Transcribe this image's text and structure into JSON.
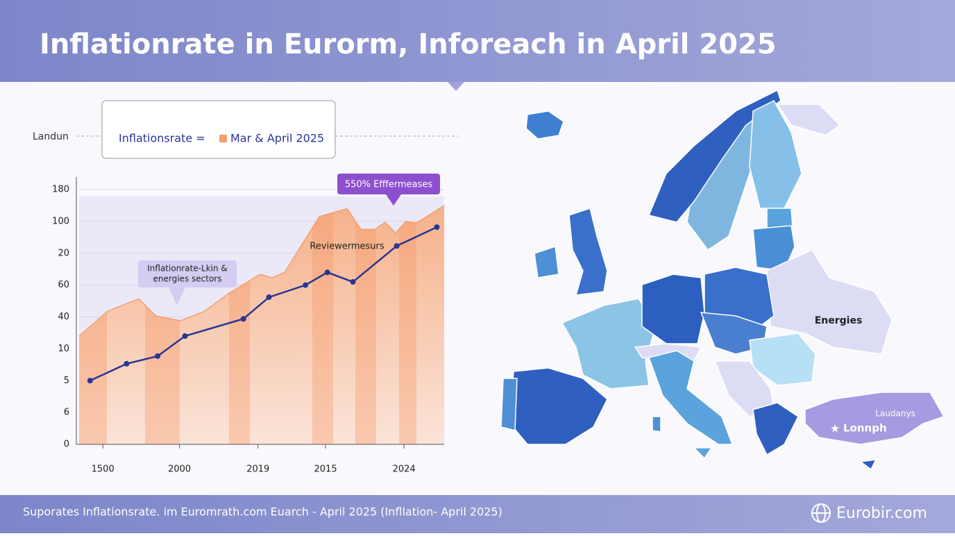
{
  "title": "Inflationrate in Eurorm, Inforeach in April 2025",
  "chart_data": {
    "type": "line",
    "side_label": "Landun",
    "series": [
      {
        "name": "Inflationsrate =",
        "color": "#283593",
        "x": [
          3,
          13,
          21.5,
          29,
          45,
          52,
          62,
          68,
          75,
          87,
          98
        ],
        "values": [
          2.0,
          2.53,
          2.77,
          3.4,
          3.94,
          4.62,
          5.0,
          5.4,
          5.1,
          6.23,
          6.82
        ]
      },
      {
        "name": "Mar & April 2025",
        "color": "#f4a06b",
        "x": [
          0,
          7.8,
          16.3,
          21.1,
          27.8,
          34.4,
          41.1,
          49.6,
          52.9,
          56.3,
          65.8,
          73.4,
          77.2,
          81.0,
          83.8,
          86.7,
          89.5,
          92.4,
          100
        ],
        "values": [
          3.4,
          4.18,
          4.57,
          4.03,
          3.88,
          4.18,
          4.75,
          5.34,
          5.23,
          5.4,
          7.15,
          7.4,
          6.75,
          6.75,
          6.97,
          6.64,
          7.0,
          6.95,
          7.5
        ]
      }
    ],
    "xlim": [
      0,
      100
    ],
    "xticks": [
      {
        "value": 6.5,
        "label": "1500"
      },
      {
        "value": 27.5,
        "label": "2000"
      },
      {
        "value": 49,
        "label": "2019"
      },
      {
        "value": 67.5,
        "label": "2015"
      },
      {
        "value": 89,
        "label": "2024"
      }
    ],
    "ylim": [
      0,
      8
    ],
    "yticks": [
      {
        "value": 0,
        "label": "0"
      },
      {
        "value": 1,
        "label": "6"
      },
      {
        "value": 2,
        "label": "5"
      },
      {
        "value": 3,
        "label": "10"
      },
      {
        "value": 4,
        "label": "40"
      },
      {
        "value": 5,
        "label": "60"
      },
      {
        "value": 6,
        "label": "20"
      },
      {
        "value": 7,
        "label": "100"
      },
      {
        "value": 8,
        "label": "180"
      }
    ],
    "grid": true,
    "annotations": {
      "badge": "550% Efffermeases",
      "note": "Reviewermesurs",
      "callout": [
        "Inflationrate-Lkin &",
        "energies sectors"
      ]
    }
  },
  "map": {
    "labels": [
      "Energies",
      "Laudanys",
      "Lonnph"
    ]
  },
  "footer": {
    "text": "Suporates Inflationsrate. im Euromrath.com Euarch - April 2025 (Infllation- April 2025)",
    "brand": "Eurobir.com"
  }
}
